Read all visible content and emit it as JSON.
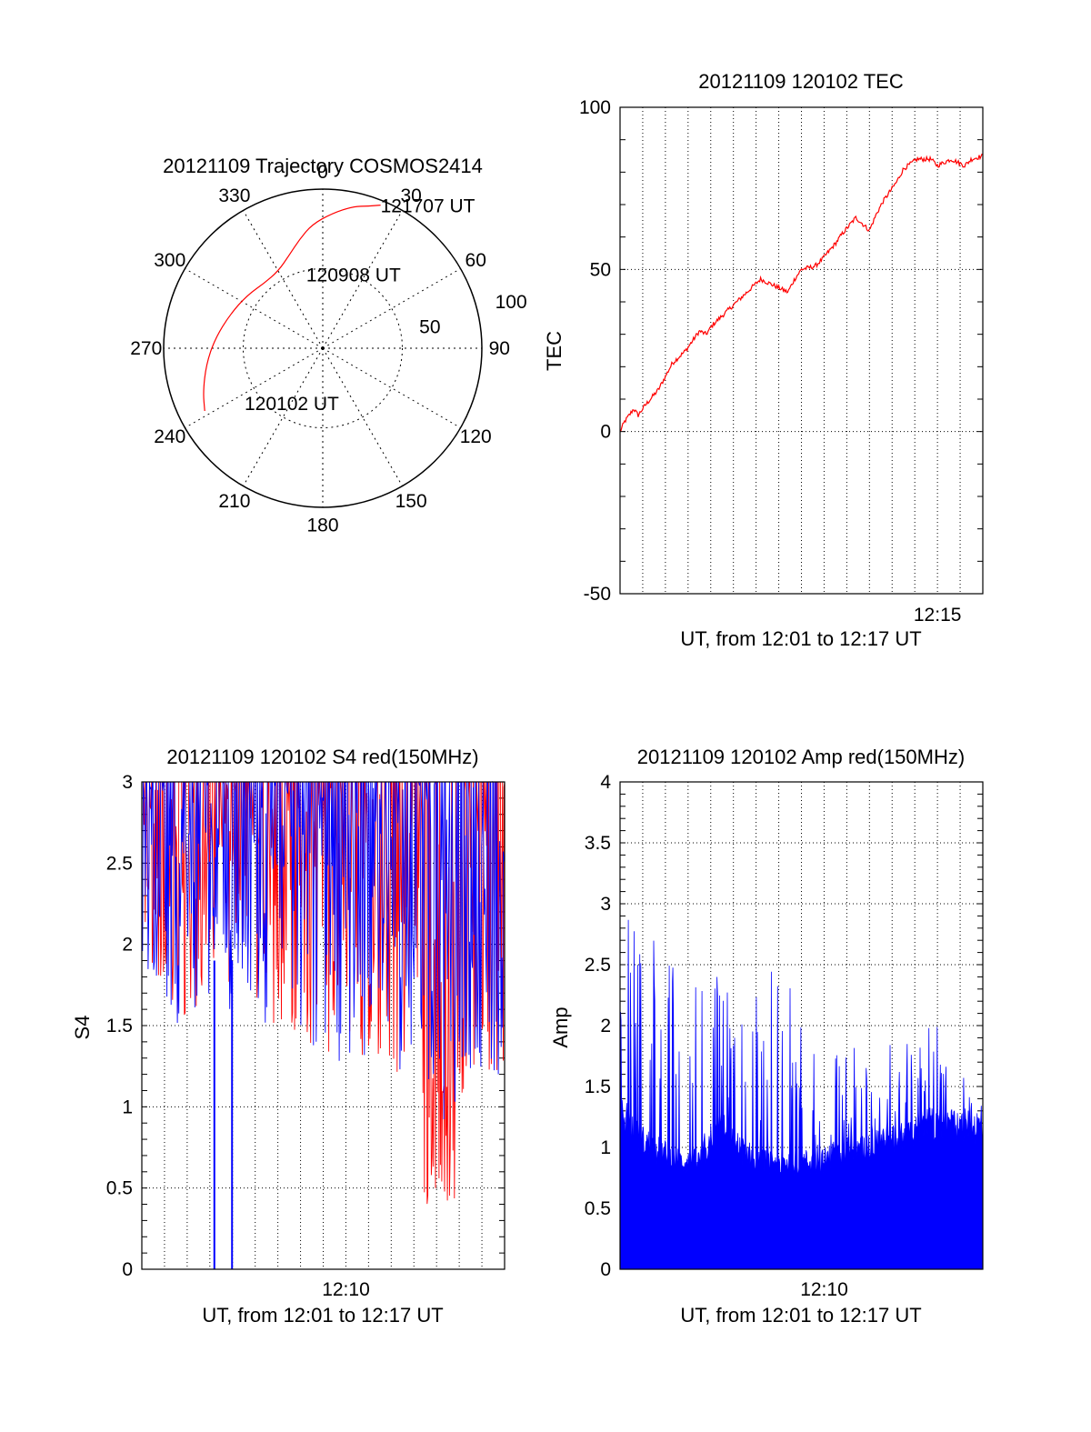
{
  "chart_data": [
    {
      "id": "polar",
      "type": "polar-trajectory",
      "title": "20121109 Trajectory COSMOS2414",
      "azimuth_labels": [
        "0",
        "30",
        "60",
        "90",
        "120",
        "150",
        "180",
        "210",
        "240",
        "270",
        "300",
        "330"
      ],
      "radial_labels": [
        "50",
        "100"
      ],
      "series_color": "#ff0000",
      "trajectory": [
        {
          "az": 242,
          "r": 84
        },
        {
          "az": 250,
          "r": 80
        },
        {
          "az": 262,
          "r": 74
        },
        {
          "az": 275,
          "r": 68
        },
        {
          "az": 290,
          "r": 62
        },
        {
          "az": 305,
          "r": 58
        },
        {
          "az": 318,
          "r": 55
        },
        {
          "az": 330,
          "r": 56
        },
        {
          "az": 340,
          "r": 62
        },
        {
          "az": 348,
          "r": 70
        },
        {
          "az": 355,
          "r": 78
        },
        {
          "az": 4,
          "r": 85
        },
        {
          "az": 12,
          "r": 91
        },
        {
          "az": 18,
          "r": 94
        },
        {
          "az": 22,
          "r": 97
        }
      ],
      "annotations": [
        {
          "text": "121707 UT",
          "az": 22,
          "r": 97
        },
        {
          "text": "120908 UT",
          "az": 345,
          "r": 40
        },
        {
          "text": "120102 UT",
          "az": 235,
          "r": 60
        }
      ]
    },
    {
      "id": "tec",
      "type": "line",
      "title": "20121109 120102 TEC",
      "xlabel": "UT, from 12:01 to 12:17 UT",
      "ylabel": "TEC",
      "xlim": [
        12.0167,
        12.2833
      ],
      "ylim": [
        -50,
        100
      ],
      "ytick_labels": [
        "-50",
        "0",
        "50",
        "100"
      ],
      "xtick_labels": [
        "12:15"
      ],
      "series_color": "#ff0000",
      "series": [
        {
          "x": [
            12.0167,
            12.02,
            12.0267,
            12.03,
            12.035,
            12.045,
            12.055,
            12.065,
            12.075,
            12.08,
            12.085,
            12.095,
            12.105,
            12.115,
            12.12,
            12.13,
            12.14,
            12.145,
            12.15,
            12.16,
            12.165,
            12.175,
            12.18,
            12.19,
            12.2,
            12.205,
            12.21,
            12.22,
            12.225,
            12.235,
            12.245,
            12.25,
            12.26,
            12.265,
            12.27,
            12.275,
            12.2833
          ],
          "y": [
            0,
            3,
            7,
            5,
            8,
            13,
            21,
            25,
            31,
            30,
            33,
            37,
            41,
            45,
            47,
            45,
            43,
            47,
            50,
            51,
            53,
            58,
            61,
            66,
            62,
            67,
            71,
            77,
            81,
            84,
            84,
            82,
            84,
            83,
            82,
            84,
            85
          ]
        }
      ]
    },
    {
      "id": "s4",
      "type": "line",
      "title": "20121109 120102 S4 red(150MHz)",
      "xlabel": "UT, from 12:01 to 12:17 UT",
      "ylabel": "S4",
      "xlim": [
        12.0167,
        12.2833
      ],
      "ylim": [
        0,
        3
      ],
      "ytick_labels": [
        "0",
        "0.5",
        "1",
        "1.5",
        "2",
        "2.5",
        "3"
      ],
      "xtick_labels": [
        "12:10"
      ],
      "series_colors": [
        "#ff0000",
        "#0000ff"
      ],
      "envelope": {
        "x": [
          12.0167,
          12.04,
          12.06,
          12.08,
          12.1,
          12.12,
          12.14,
          12.16,
          12.18,
          12.2,
          12.22,
          12.24,
          12.26,
          12.2833
        ],
        "upper": [
          3,
          3,
          3,
          3,
          3,
          3,
          3,
          3,
          3,
          3,
          3,
          3,
          3,
          3
        ],
        "lower": [
          1.8,
          1.5,
          1.6,
          1.6,
          1.5,
          1.5,
          1.4,
          1.2,
          1.3,
          1.2,
          1.2,
          0.9,
          1.2,
          1.2
        ]
      },
      "red_dip": {
        "x": [
          12.225,
          12.235,
          12.245
        ],
        "y": [
          0.5,
          0.4,
          0.45
        ]
      },
      "blue_dropouts_x": [
        12.07,
        12.083
      ]
    },
    {
      "id": "amp",
      "type": "area",
      "title": "20121109 120102 Amp red(150MHz)",
      "xlabel": "UT, from 12:01 to 12:17 UT",
      "ylabel": "Amp",
      "xlim": [
        12.0167,
        12.2833
      ],
      "ylim": [
        0,
        4
      ],
      "ytick_labels": [
        "0",
        "0.5",
        "1",
        "1.5",
        "2",
        "2.5",
        "3",
        "3.5",
        "4"
      ],
      "xtick_labels": [
        "12:10"
      ],
      "series_color": "#0000ff",
      "envelope": {
        "x": [
          12.0167,
          12.03,
          12.045,
          12.06,
          12.075,
          12.09,
          12.105,
          12.12,
          12.135,
          12.15,
          12.165,
          12.18,
          12.195,
          12.21,
          12.225,
          12.24,
          12.255,
          12.27,
          12.2833
        ],
        "base": [
          1.3,
          1.1,
          1.0,
          0.9,
          0.9,
          1.2,
          1.0,
          0.9,
          0.9,
          0.9,
          0.9,
          1.0,
          1.0,
          1.1,
          1.1,
          1.2,
          1.2,
          1.2,
          1.2
        ],
        "peak": [
          2.8,
          3.1,
          2.6,
          2.5,
          2.5,
          2.5,
          2.2,
          2.3,
          2.6,
          2.0,
          1.8,
          1.8,
          1.9,
          1.9,
          2.0,
          2.0,
          2.0,
          1.9,
          1.8
        ]
      }
    }
  ]
}
